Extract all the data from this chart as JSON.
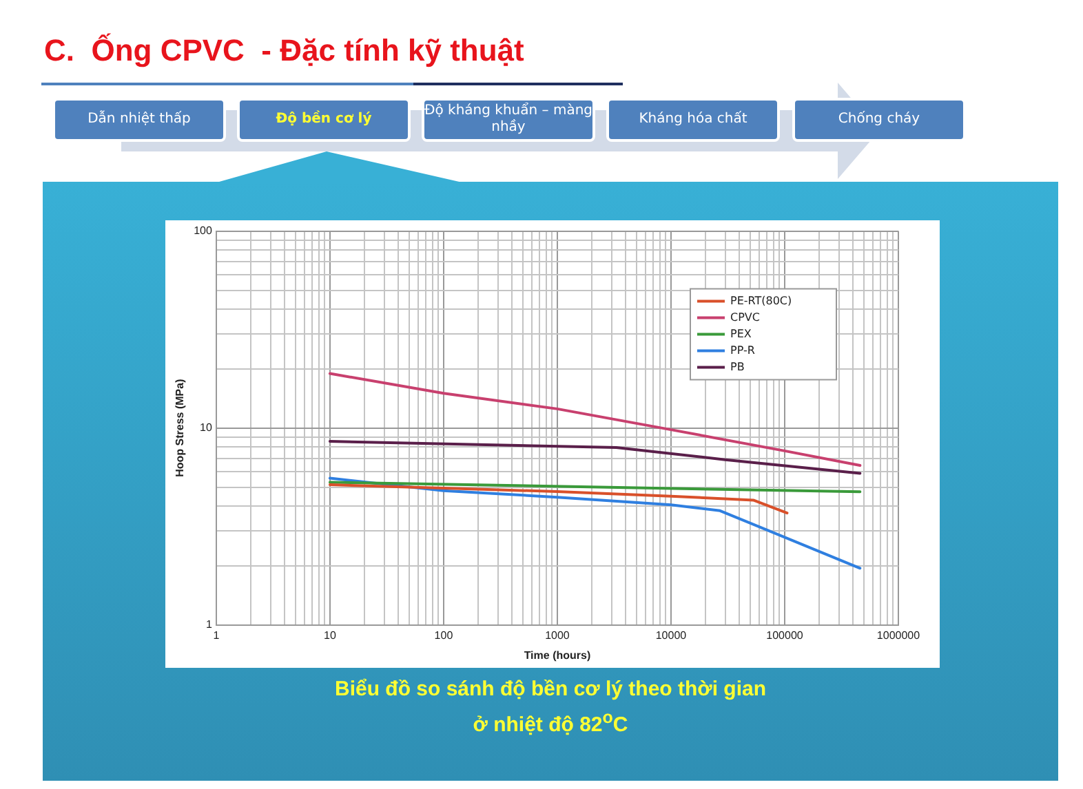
{
  "chart_data": {
    "type": "line",
    "title": "C.  Ống CPVC  - Đặc tính kỹ thuật",
    "xlabel": "Time (hours)",
    "ylabel": "Hoop Stress (MPa)",
    "annotations": [
      "Dẫn nhiệt thấp",
      "Độ bền cơ lý",
      "Độ kháng khuẩn – màng nhầy",
      "Kháng hóa chất",
      "Chống cháy",
      "Biểu đồ so sánh độ bền cơ lý theo thời gian ở nhiệt độ 82$^{o}$C"
    ],
    "log": "xy",
    "grid": true,
    "legend": "top right",
    "marker": "none",
    "line_style": "solid",
    "xlim": [
      1,
      1000000
    ],
    "ylim": [
      1,
      100
    ],
    "xticks": [
      1,
      {
        "value": 2,
        "label": null
      },
      {
        "value": 3,
        "label": null
      },
      {
        "value": 4,
        "label": null
      },
      {
        "value": 5,
        "label": null
      },
      {
        "value": 6,
        "label": null
      },
      {
        "value": 7,
        "label": null
      },
      {
        "value": 8,
        "label": null
      },
      {
        "value": 9,
        "label": null
      },
      10,
      {
        "value": 20,
        "label": null
      },
      {
        "value": 30,
        "label": null
      },
      {
        "value": 40,
        "label": null
      },
      {
        "value": 50,
        "label": null
      },
      {
        "value": 60,
        "label": null
      },
      {
        "value": 70,
        "label": null
      },
      {
        "value": 80,
        "label": null
      },
      {
        "value": 90,
        "label": null
      },
      100,
      {
        "value": 200,
        "label": null
      },
      {
        "value": 300,
        "label": null
      },
      {
        "value": 400,
        "label": null
      },
      {
        "value": 500,
        "label": null
      },
      {
        "value": 600,
        "label": null
      },
      {
        "value": 700,
        "label": null
      },
      {
        "value": 800,
        "label": null
      },
      {
        "value": 900,
        "label": null
      },
      1000,
      {
        "value": 2000,
        "label": null
      },
      {
        "value": 3000,
        "label": null
      },
      {
        "value": 4000,
        "label": null
      },
      {
        "value": 5000,
        "label": null
      },
      {
        "value": 6000,
        "label": null
      },
      {
        "value": 7000,
        "label": null
      },
      {
        "value": 8000,
        "label": null
      },
      {
        "value": 9000,
        "label": null
      },
      10000,
      {
        "value": 20000,
        "label": null
      },
      {
        "value": 30000,
        "label": null
      },
      {
        "value": 40000,
        "label": null
      },
      {
        "value": 50000,
        "label": null
      },
      {
        "value": 60000,
        "label": null
      },
      {
        "value": 70000,
        "label": null
      },
      {
        "value": 80000,
        "label": null
      },
      {
        "value": 90000,
        "label": null
      },
      100000,
      {
        "value": 200000,
        "label": null
      },
      {
        "value": 300000,
        "label": null
      },
      {
        "value": 400000,
        "label": null
      },
      {
        "value": 500000,
        "label": null
      },
      {
        "value": 600000,
        "label": null
      },
      {
        "value": 700000,
        "label": null
      },
      {
        "value": 800000,
        "label": null
      },
      {
        "value": 900000,
        "label": null
      },
      1000000
    ],
    "yticks": [
      1,
      {
        "value": 2,
        "label": null
      },
      {
        "value": 3,
        "label": null
      },
      {
        "value": 4,
        "label": null
      },
      {
        "value": 5,
        "label": null
      },
      {
        "value": 6,
        "label": null
      },
      {
        "value": 7,
        "label": null
      },
      {
        "value": 8,
        "label": null
      },
      {
        "value": 9,
        "label": null
      },
      10,
      {
        "value": 20,
        "label": null
      },
      {
        "value": 30,
        "label": null
      },
      {
        "value": 40,
        "label": null
      },
      {
        "value": 50,
        "label": null
      },
      {
        "value": 60,
        "label": null
      },
      {
        "value": 70,
        "label": null
      },
      {
        "value": 80,
        "label": null
      },
      {
        "value": 90,
        "label": null
      },
      100
    ],
    "series": [
      {
        "name": "PE-RT(80C)",
        "color": "#d9502a",
        "x": [
          10,
          100,
          1000,
          10000,
          53000,
          105000
        ],
        "values": [
          5.15,
          4.95,
          4.75,
          4.5,
          4.3,
          3.7
        ]
      },
      {
        "name": "CPVC",
        "color": "#c8406e",
        "x": [
          10,
          100,
          1000,
          10000,
          100000,
          460000
        ],
        "values": [
          18.9,
          15,
          12.5,
          9.8,
          7.65,
          6.45
        ]
      },
      {
        "name": "PEX",
        "color": "#3a9a3a",
        "x": [
          10,
          460000
        ],
        "values": [
          5.3,
          4.74
        ]
      },
      {
        "name": "PP-R",
        "color": "#2f7fe0",
        "x": [
          10,
          100,
          1000,
          10000,
          27000,
          460000
        ],
        "values": [
          5.56,
          4.8,
          4.45,
          4.07,
          3.8,
          1.94
        ]
      },
      {
        "name": "PB",
        "color": "#5a1f4a",
        "x": [
          10,
          3300,
          30000,
          460000
        ],
        "values": [
          8.55,
          7.95,
          6.9,
          5.88
        ]
      }
    ]
  }
}
